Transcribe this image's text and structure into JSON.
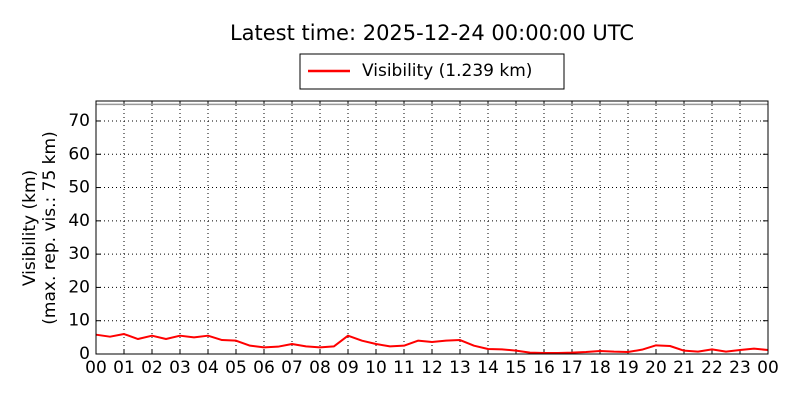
{
  "chart_data": {
    "type": "line",
    "title": "Latest time: 2025-12-24 00:00:00 UTC",
    "y_label": [
      "Visibility (km)",
      "(max. rep. vis.: 75 km)"
    ],
    "x": [
      0,
      0.5,
      1,
      1.5,
      2,
      2.5,
      3,
      3.5,
      4,
      4.5,
      5,
      5.5,
      6,
      6.5,
      7,
      7.5,
      8,
      8.5,
      9,
      9.5,
      10,
      10.5,
      11,
      11.5,
      12,
      12.5,
      13,
      13.5,
      14,
      14.5,
      15,
      15.5,
      16,
      16.5,
      17,
      17.5,
      18,
      18.5,
      19,
      19.5,
      20,
      20.5,
      21,
      21.5,
      22,
      22.5,
      23,
      23.5,
      24
    ],
    "series": [
      {
        "name": "Visibility (1.239 km)",
        "color": "#ff0000",
        "values": [
          5.8,
          5.2,
          6.0,
          4.5,
          5.5,
          4.5,
          5.5,
          5.0,
          5.5,
          4.2,
          4.0,
          2.5,
          2.0,
          2.2,
          3.0,
          2.3,
          2.0,
          2.3,
          5.5,
          4.0,
          3.0,
          2.3,
          2.5,
          4.0,
          3.6,
          4.0,
          4.2,
          2.5,
          1.5,
          1.4,
          1.0,
          0.4,
          0.3,
          0.3,
          0.4,
          0.6,
          0.9,
          0.7,
          0.6,
          1.3,
          2.6,
          2.4,
          1.0,
          0.7,
          1.4,
          0.7,
          1.2,
          1.6,
          1.2
        ]
      }
    ],
    "reference_line": {
      "value": 75,
      "color": "#999999"
    },
    "xlim": [
      0,
      24
    ],
    "xticks": [
      {
        "value": 0,
        "label": "00"
      },
      {
        "value": 1,
        "label": "01"
      },
      {
        "value": 2,
        "label": "02"
      },
      {
        "value": 3,
        "label": "03"
      },
      {
        "value": 4,
        "label": "04"
      },
      {
        "value": 5,
        "label": "05"
      },
      {
        "value": 6,
        "label": "06"
      },
      {
        "value": 7,
        "label": "07"
      },
      {
        "value": 8,
        "label": "08"
      },
      {
        "value": 9,
        "label": "09"
      },
      {
        "value": 10,
        "label": "10"
      },
      {
        "value": 11,
        "label": "11"
      },
      {
        "value": 12,
        "label": "12"
      },
      {
        "value": 13,
        "label": "13"
      },
      {
        "value": 14,
        "label": "14"
      },
      {
        "value": 15,
        "label": "15"
      },
      {
        "value": 16,
        "label": "16"
      },
      {
        "value": 17,
        "label": "17"
      },
      {
        "value": 18,
        "label": "18"
      },
      {
        "value": 19,
        "label": "19"
      },
      {
        "value": 20,
        "label": "20"
      },
      {
        "value": 21,
        "label": "21"
      },
      {
        "value": 22,
        "label": "22"
      },
      {
        "value": 23,
        "label": "23"
      },
      {
        "value": 24,
        "label": "00"
      }
    ],
    "ylim": [
      0,
      76
    ],
    "yticks": [
      0,
      10,
      20,
      30,
      40,
      50,
      60,
      70
    ],
    "grid": true
  }
}
